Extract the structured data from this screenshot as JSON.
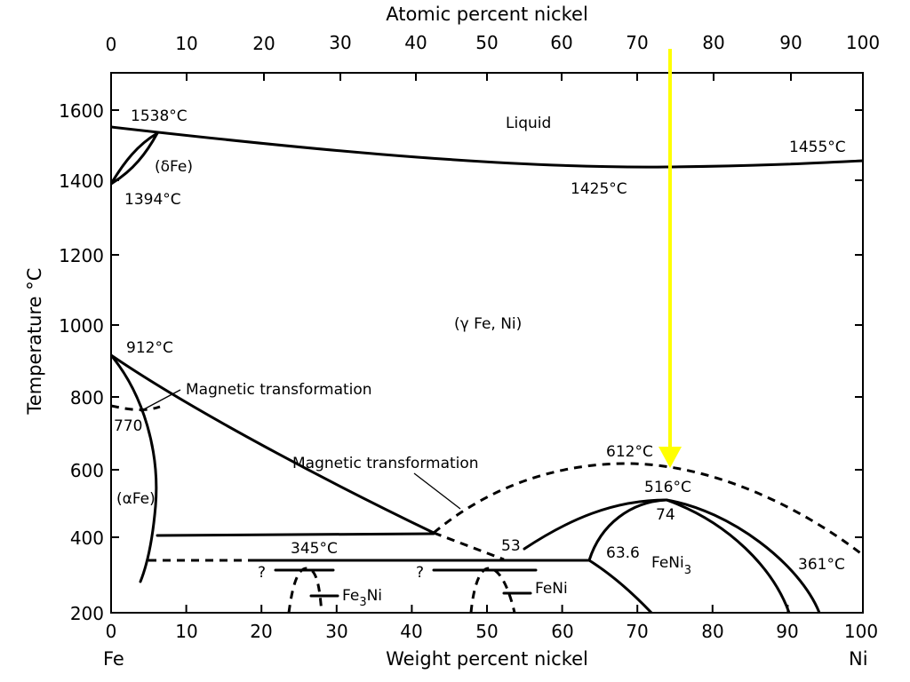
{
  "top_axis": {
    "title": "Atomic percent nickel",
    "ticks": [
      "0",
      "10",
      "20",
      "30",
      "40",
      "50",
      "60",
      "70",
      "80",
      "90",
      "100"
    ]
  },
  "bottom_axis": {
    "title": "Weight percent nickel",
    "ticks": [
      "0",
      "10",
      "20",
      "30",
      "40",
      "50",
      "60",
      "70",
      "80",
      "90",
      "100"
    ],
    "end_left": "Fe",
    "end_right": "Ni"
  },
  "y_axis": {
    "title": "Temperature °C",
    "ticks": [
      "200",
      "400",
      "600",
      "800",
      "1000",
      "1200",
      "1400",
      "1600"
    ]
  },
  "labels": {
    "liquid": "Liquid",
    "t1538": "1538°C",
    "t1455": "1455°C",
    "t1394": "1394°C",
    "t1425": "1425°C",
    "delta_fe": "(δFe)",
    "gamma_feni": "(γ Fe, Ni)",
    "t912": "912°C",
    "magnetic_1": "Magnetic transformation",
    "magnetic_2": "Magnetic transformation",
    "t770": "770",
    "alpha_fe": "(αFe)",
    "t612": "612°C",
    "t516": "516°C",
    "n74": "74",
    "t345": "345°C",
    "n53": "53",
    "n636": "63.6",
    "feni3_base": "FeNi",
    "feni3_sub": "3",
    "t361": "361°C",
    "q1": "?",
    "q2": "?",
    "fe3ni_a": "Fe",
    "fe3ni_sub": "3",
    "fe3ni_b": "Ni",
    "feni": "FeNi"
  },
  "colors": {
    "line": "#000000",
    "arrow": "#ffff00",
    "background": "#ffffff"
  }
}
